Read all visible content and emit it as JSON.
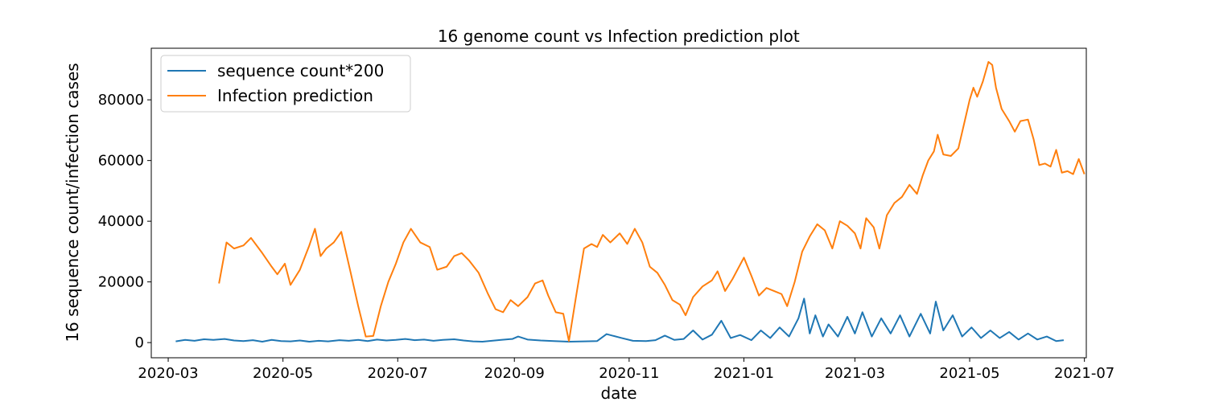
{
  "chart_data": {
    "type": "line",
    "title": "16 genome count vs Infection prediction plot",
    "xlabel": "date",
    "ylabel": "16 sequence count/infection cases",
    "xlim": [
      "2020-02-21",
      "2021-07-02"
    ],
    "ylim": [
      -5000,
      97000
    ],
    "x_ticks": [
      "2020-03-01",
      "2020-05-01",
      "2020-07-01",
      "2020-09-01",
      "2020-11-01",
      "2021-01-01",
      "2021-03-01",
      "2021-05-01",
      "2021-07-01"
    ],
    "x_tick_labels": [
      "2020-03",
      "2020-05",
      "2020-07",
      "2020-09",
      "2020-11",
      "2021-01",
      "2021-03",
      "2021-05",
      "2021-07"
    ],
    "y_ticks": [
      0,
      20000,
      40000,
      60000,
      80000
    ],
    "y_tick_labels": [
      "0",
      "20000",
      "40000",
      "60000",
      "80000"
    ],
    "grid": false,
    "legend_position": "top-left",
    "series": [
      {
        "name": "sequence count*200",
        "color": "#1f77b4",
        "points": [
          [
            "2020-03-05",
            400
          ],
          [
            "2020-03-10",
            900
          ],
          [
            "2020-03-15",
            600
          ],
          [
            "2020-03-20",
            1100
          ],
          [
            "2020-03-25",
            900
          ],
          [
            "2020-03-31",
            1200
          ],
          [
            "2020-04-05",
            700
          ],
          [
            "2020-04-10",
            500
          ],
          [
            "2020-04-15",
            800
          ],
          [
            "2020-04-20",
            300
          ],
          [
            "2020-04-25",
            900
          ],
          [
            "2020-04-30",
            500
          ],
          [
            "2020-05-05",
            400
          ],
          [
            "2020-05-10",
            700
          ],
          [
            "2020-05-15",
            300
          ],
          [
            "2020-05-20",
            600
          ],
          [
            "2020-05-25",
            400
          ],
          [
            "2020-05-31",
            800
          ],
          [
            "2020-06-05",
            600
          ],
          [
            "2020-06-10",
            900
          ],
          [
            "2020-06-15",
            500
          ],
          [
            "2020-06-20",
            1000
          ],
          [
            "2020-06-25",
            700
          ],
          [
            "2020-06-30",
            900
          ],
          [
            "2020-07-05",
            1200
          ],
          [
            "2020-07-10",
            800
          ],
          [
            "2020-07-15",
            1000
          ],
          [
            "2020-07-20",
            600
          ],
          [
            "2020-07-25",
            900
          ],
          [
            "2020-07-31",
            1100
          ],
          [
            "2020-08-05",
            700
          ],
          [
            "2020-08-10",
            400
          ],
          [
            "2020-08-15",
            300
          ],
          [
            "2020-08-20",
            600
          ],
          [
            "2020-08-25",
            900
          ],
          [
            "2020-08-31",
            1200
          ],
          [
            "2020-09-03",
            2000
          ],
          [
            "2020-09-08",
            1000
          ],
          [
            "2020-09-15",
            700
          ],
          [
            "2020-09-22",
            500
          ],
          [
            "2020-09-30",
            300
          ],
          [
            "2020-10-08",
            400
          ],
          [
            "2020-10-15",
            500
          ],
          [
            "2020-10-20",
            2800
          ],
          [
            "2020-10-28",
            1500
          ],
          [
            "2020-11-03",
            600
          ],
          [
            "2020-11-10",
            500
          ],
          [
            "2020-11-15",
            800
          ],
          [
            "2020-11-20",
            2300
          ],
          [
            "2020-11-25",
            900
          ],
          [
            "2020-11-30",
            1200
          ],
          [
            "2020-12-05",
            4000
          ],
          [
            "2020-12-10",
            1000
          ],
          [
            "2020-12-15",
            2600
          ],
          [
            "2020-12-20",
            7200
          ],
          [
            "2020-12-25",
            1500
          ],
          [
            "2020-12-30",
            2500
          ],
          [
            "2021-01-05",
            800
          ],
          [
            "2021-01-10",
            4000
          ],
          [
            "2021-01-15",
            1500
          ],
          [
            "2021-01-20",
            5000
          ],
          [
            "2021-01-25",
            2000
          ],
          [
            "2021-01-30",
            8000
          ],
          [
            "2021-02-02",
            14500
          ],
          [
            "2021-02-05",
            3000
          ],
          [
            "2021-02-08",
            9000
          ],
          [
            "2021-02-12",
            2000
          ],
          [
            "2021-02-15",
            6000
          ],
          [
            "2021-02-20",
            2000
          ],
          [
            "2021-02-25",
            8500
          ],
          [
            "2021-03-01",
            3000
          ],
          [
            "2021-03-05",
            10000
          ],
          [
            "2021-03-10",
            2000
          ],
          [
            "2021-03-15",
            8000
          ],
          [
            "2021-03-20",
            3000
          ],
          [
            "2021-03-25",
            9000
          ],
          [
            "2021-03-30",
            2000
          ],
          [
            "2021-04-05",
            9500
          ],
          [
            "2021-04-10",
            3000
          ],
          [
            "2021-04-13",
            13500
          ],
          [
            "2021-04-17",
            4000
          ],
          [
            "2021-04-22",
            9000
          ],
          [
            "2021-04-27",
            2000
          ],
          [
            "2021-05-02",
            5000
          ],
          [
            "2021-05-07",
            1500
          ],
          [
            "2021-05-12",
            4000
          ],
          [
            "2021-05-17",
            1500
          ],
          [
            "2021-05-22",
            3500
          ],
          [
            "2021-05-27",
            1000
          ],
          [
            "2021-06-01",
            3000
          ],
          [
            "2021-06-06",
            1000
          ],
          [
            "2021-06-11",
            2000
          ],
          [
            "2021-06-16",
            500
          ],
          [
            "2021-06-20",
            800
          ]
        ]
      },
      {
        "name": "Infection prediction",
        "color": "#ff7f0e",
        "points": [
          [
            "2020-03-28",
            19500
          ],
          [
            "2020-04-01",
            33000
          ],
          [
            "2020-04-05",
            31000
          ],
          [
            "2020-04-10",
            32000
          ],
          [
            "2020-04-14",
            34500
          ],
          [
            "2020-04-20",
            29500
          ],
          [
            "2020-04-25",
            25000
          ],
          [
            "2020-04-28",
            22500
          ],
          [
            "2020-05-02",
            26000
          ],
          [
            "2020-05-05",
            19000
          ],
          [
            "2020-05-10",
            24000
          ],
          [
            "2020-05-15",
            32000
          ],
          [
            "2020-05-18",
            37500
          ],
          [
            "2020-05-21",
            28500
          ],
          [
            "2020-05-24",
            31000
          ],
          [
            "2020-05-28",
            33000
          ],
          [
            "2020-06-01",
            36500
          ],
          [
            "2020-06-06",
            23000
          ],
          [
            "2020-06-10",
            12000
          ],
          [
            "2020-06-14",
            2000
          ],
          [
            "2020-06-18",
            2200
          ],
          [
            "2020-06-22",
            12000
          ],
          [
            "2020-06-26",
            20000
          ],
          [
            "2020-06-30",
            26000
          ],
          [
            "2020-07-04",
            33000
          ],
          [
            "2020-07-08",
            37500
          ],
          [
            "2020-07-13",
            33000
          ],
          [
            "2020-07-18",
            31500
          ],
          [
            "2020-07-22",
            24000
          ],
          [
            "2020-07-27",
            25000
          ],
          [
            "2020-07-31",
            28500
          ],
          [
            "2020-08-04",
            29500
          ],
          [
            "2020-08-08",
            27000
          ],
          [
            "2020-08-13",
            23000
          ],
          [
            "2020-08-18",
            16000
          ],
          [
            "2020-08-22",
            11000
          ],
          [
            "2020-08-26",
            10000
          ],
          [
            "2020-08-30",
            14000
          ],
          [
            "2020-09-03",
            12000
          ],
          [
            "2020-09-08",
            15000
          ],
          [
            "2020-09-12",
            19500
          ],
          [
            "2020-09-16",
            20500
          ],
          [
            "2020-09-19",
            15500
          ],
          [
            "2020-09-23",
            10000
          ],
          [
            "2020-09-27",
            9500
          ],
          [
            "2020-09-30",
            500
          ],
          [
            "2020-10-04",
            16000
          ],
          [
            "2020-10-08",
            31000
          ],
          [
            "2020-10-12",
            32500
          ],
          [
            "2020-10-15",
            31500
          ],
          [
            "2020-10-18",
            35500
          ],
          [
            "2020-10-22",
            33000
          ],
          [
            "2020-10-27",
            36000
          ],
          [
            "2020-10-31",
            32500
          ],
          [
            "2020-11-04",
            37500
          ],
          [
            "2020-11-08",
            33000
          ],
          [
            "2020-11-12",
            25000
          ],
          [
            "2020-11-16",
            23000
          ],
          [
            "2020-11-20",
            19000
          ],
          [
            "2020-11-24",
            14000
          ],
          [
            "2020-11-28",
            12500
          ],
          [
            "2020-12-01",
            9000
          ],
          [
            "2020-12-05",
            15000
          ],
          [
            "2020-12-10",
            18500
          ],
          [
            "2020-12-15",
            20500
          ],
          [
            "2020-12-18",
            23500
          ],
          [
            "2020-12-22",
            17000
          ],
          [
            "2020-12-26",
            21000
          ],
          [
            "2021-01-01",
            28000
          ],
          [
            "2021-01-05",
            22000
          ],
          [
            "2021-01-09",
            15500
          ],
          [
            "2021-01-13",
            18000
          ],
          [
            "2021-01-17",
            17000
          ],
          [
            "2021-01-21",
            16000
          ],
          [
            "2021-01-24",
            12000
          ],
          [
            "2021-01-28",
            20000
          ],
          [
            "2021-02-01",
            30000
          ],
          [
            "2021-02-05",
            35000
          ],
          [
            "2021-02-09",
            39000
          ],
          [
            "2021-02-13",
            37000
          ],
          [
            "2021-02-17",
            31000
          ],
          [
            "2021-02-21",
            40000
          ],
          [
            "2021-02-25",
            38500
          ],
          [
            "2021-03-01",
            36000
          ],
          [
            "2021-03-04",
            31000
          ],
          [
            "2021-03-07",
            41000
          ],
          [
            "2021-03-11",
            38000
          ],
          [
            "2021-03-14",
            31000
          ],
          [
            "2021-03-18",
            42000
          ],
          [
            "2021-03-22",
            46000
          ],
          [
            "2021-03-26",
            48000
          ],
          [
            "2021-03-30",
            52000
          ],
          [
            "2021-04-03",
            49000
          ],
          [
            "2021-04-06",
            55000
          ],
          [
            "2021-04-09",
            60000
          ],
          [
            "2021-04-12",
            63000
          ],
          [
            "2021-04-14",
            68500
          ],
          [
            "2021-04-17",
            62000
          ],
          [
            "2021-04-21",
            61500
          ],
          [
            "2021-04-25",
            64000
          ],
          [
            "2021-04-28",
            72000
          ],
          [
            "2021-05-01",
            80000
          ],
          [
            "2021-05-03",
            84000
          ],
          [
            "2021-05-05",
            81000
          ],
          [
            "2021-05-08",
            86000
          ],
          [
            "2021-05-11",
            92500
          ],
          [
            "2021-05-13",
            91500
          ],
          [
            "2021-05-15",
            84000
          ],
          [
            "2021-05-18",
            77000
          ],
          [
            "2021-05-22",
            73000
          ],
          [
            "2021-05-25",
            69500
          ],
          [
            "2021-05-28",
            73000
          ],
          [
            "2021-06-01",
            73500
          ],
          [
            "2021-06-04",
            67000
          ],
          [
            "2021-06-07",
            58500
          ],
          [
            "2021-06-10",
            59000
          ],
          [
            "2021-06-13",
            58000
          ],
          [
            "2021-06-16",
            63500
          ],
          [
            "2021-06-19",
            56000
          ],
          [
            "2021-06-22",
            56500
          ],
          [
            "2021-06-25",
            55500
          ],
          [
            "2021-06-28",
            60500
          ],
          [
            "2021-07-01",
            55500
          ]
        ]
      }
    ]
  }
}
